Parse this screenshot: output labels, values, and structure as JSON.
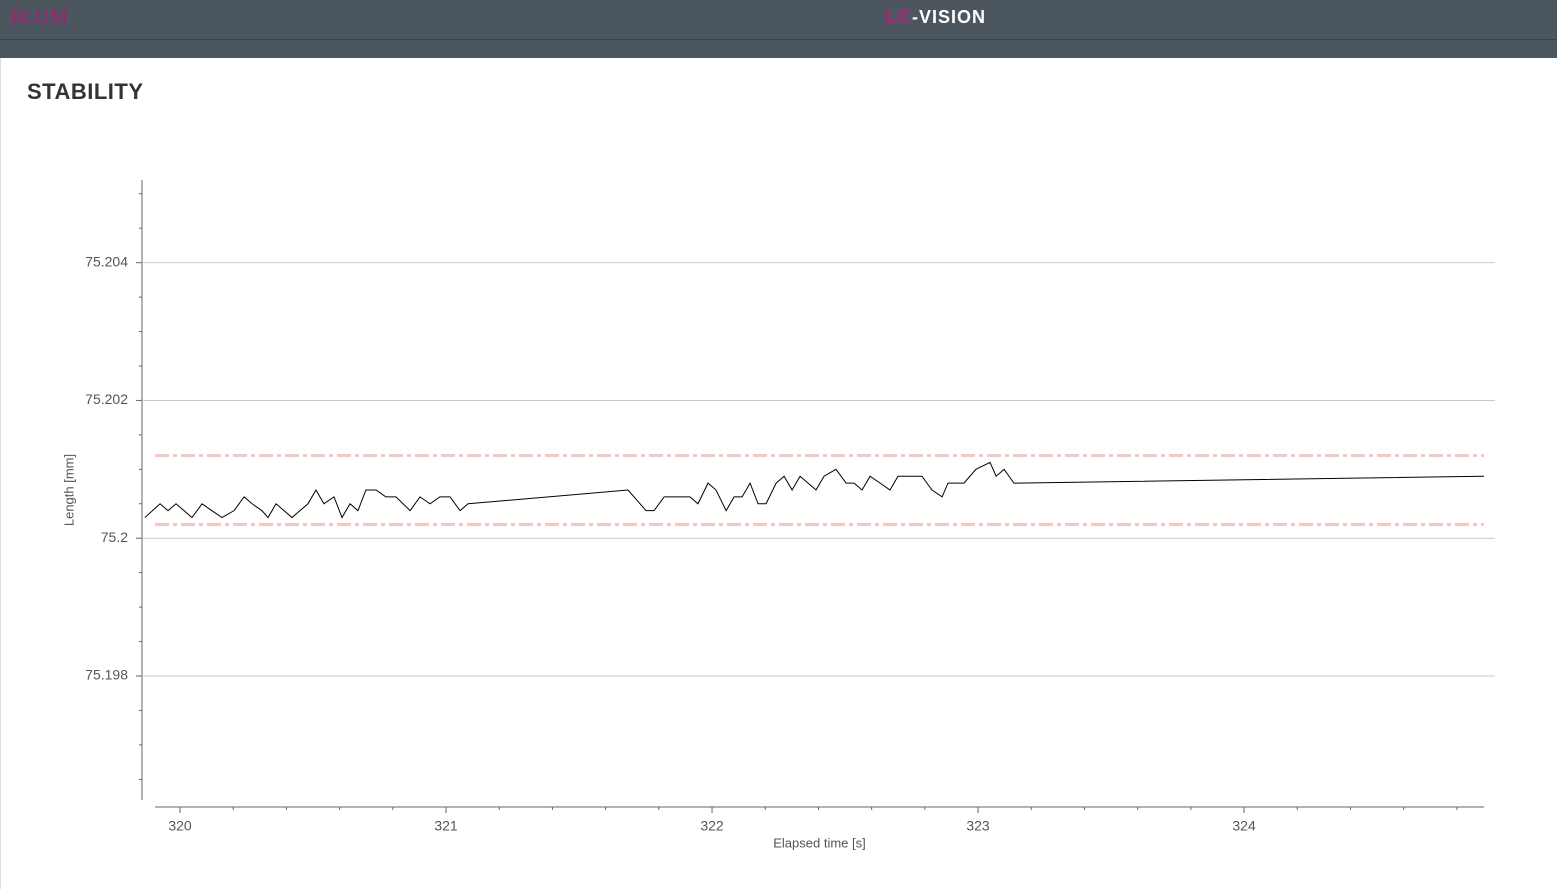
{
  "header": {
    "logo": "BLUM",
    "title_accent": "LC",
    "title_rest": "-VISION"
  },
  "page": {
    "title": "STABILITY"
  },
  "chart_data": {
    "type": "line",
    "xlabel": "Elapsed time [s]",
    "ylabel": "Length [mm]",
    "x": [
      319.868,
      319.925,
      319.955,
      319.985,
      320.015,
      320.045,
      320.083,
      320.12,
      320.158,
      320.203,
      320.241,
      320.271,
      320.308,
      320.331,
      320.361,
      320.391,
      320.421,
      320.451,
      320.481,
      320.511,
      320.541,
      320.579,
      320.609,
      320.639,
      320.669,
      320.699,
      320.737,
      320.774,
      320.812,
      320.865,
      320.902,
      320.94,
      320.977,
      321.015,
      321.053,
      321.083,
      321.684,
      321.752,
      321.782,
      321.82,
      321.917,
      321.947,
      321.985,
      322.015,
      322.053,
      322.083,
      322.113,
      322.143,
      322.173,
      322.203,
      322.241,
      322.271,
      322.301,
      322.331,
      322.361,
      322.391,
      322.421,
      322.466,
      322.504,
      322.534,
      322.564,
      322.594,
      322.632,
      322.669,
      322.699,
      322.789,
      322.827,
      322.865,
      322.887,
      322.947,
      322.992,
      323.045,
      323.068,
      323.098,
      323.135,
      324.902
    ],
    "values": [
      75.2003,
      75.2005,
      75.2004,
      75.2005,
      75.2004,
      75.2003,
      75.2005,
      75.2004,
      75.2003,
      75.2004,
      75.2006,
      75.2005,
      75.2004,
      75.2003,
      75.2005,
      75.2004,
      75.2003,
      75.2004,
      75.2005,
      75.2007,
      75.2005,
      75.2006,
      75.2003,
      75.2005,
      75.2004,
      75.2007,
      75.2007,
      75.2006,
      75.2006,
      75.2004,
      75.2006,
      75.2005,
      75.2006,
      75.2006,
      75.2004,
      75.2005,
      75.2007,
      75.2004,
      75.2004,
      75.2006,
      75.2006,
      75.2005,
      75.2008,
      75.2007,
      75.2004,
      75.2006,
      75.2006,
      75.2008,
      75.2005,
      75.2005,
      75.2008,
      75.2009,
      75.2007,
      75.2009,
      75.2008,
      75.2007,
      75.2009,
      75.201,
      75.2008,
      75.2008,
      75.2007,
      75.2009,
      75.2008,
      75.2007,
      75.2009,
      75.2009,
      75.2007,
      75.2006,
      75.2008,
      75.2008,
      75.201,
      75.2011,
      75.2009,
      75.201,
      75.2008,
      75.2009
    ],
    "color": "#000000",
    "limits": [
      75.2002,
      75.2012
    ],
    "limit_color": "#f4c6c6",
    "xlim": [
      319.906,
      324.902
    ],
    "xticks": [
      320,
      321,
      322,
      323,
      324
    ],
    "ylim": [
      75.1962,
      75.2052
    ],
    "yticks": [
      75.198,
      75.2,
      75.202,
      75.204
    ],
    "x_minor_divisions": 5,
    "y_minor_divisions": 4,
    "grid": true
  }
}
